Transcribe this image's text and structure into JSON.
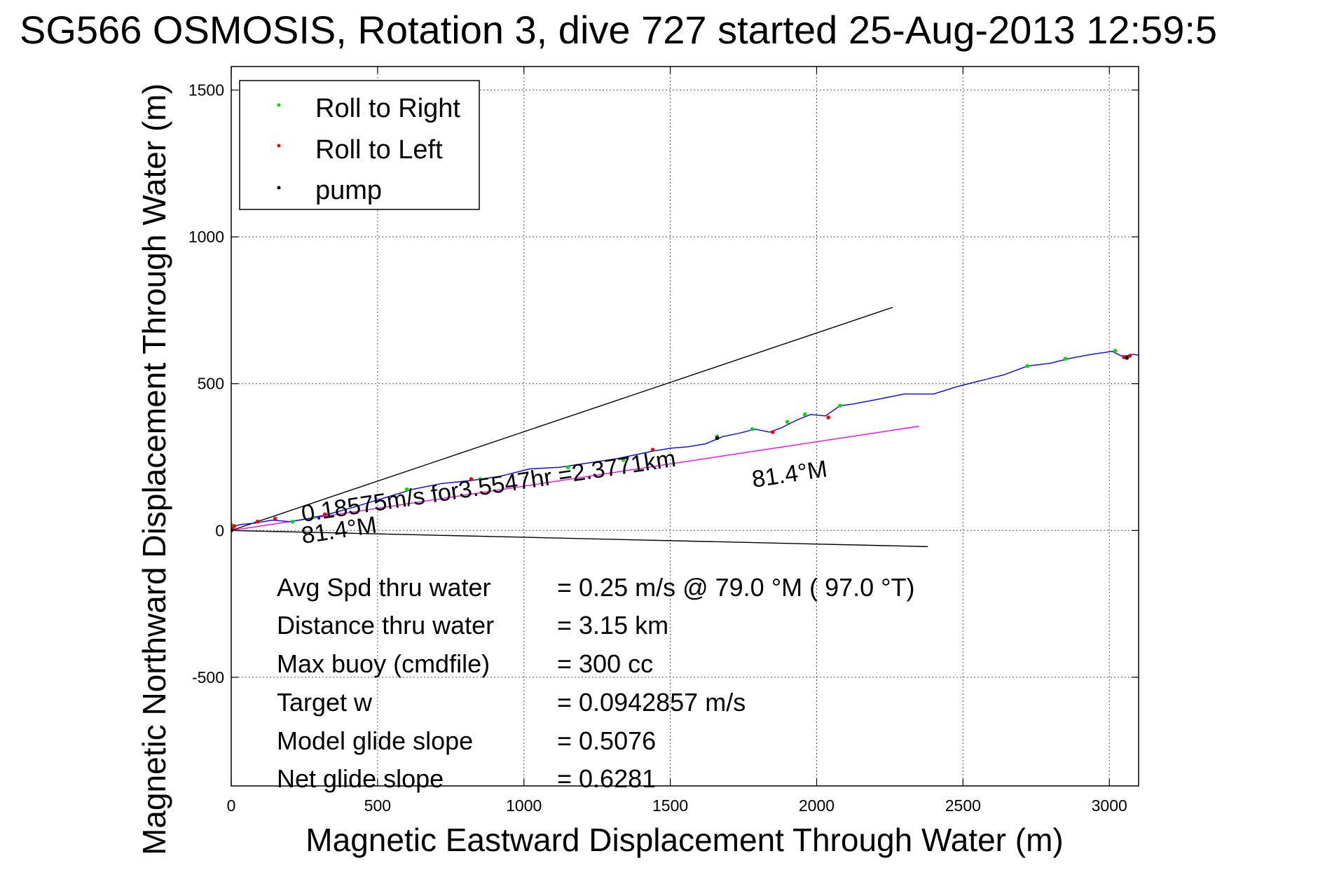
{
  "chart_data": {
    "type": "line",
    "title": "SG566 OSMOSIS, Rotation 3, dive 727 started 25-Aug-2013 12:59:5",
    "xlabel": "Magnetic Eastward Displacement Through Water (m)",
    "ylabel": "Magnetic Northward Displacement Through Water (m)",
    "xlim": [
      0,
      3100
    ],
    "ylim": [
      -870,
      1580
    ],
    "xticks": [
      0,
      500,
      1000,
      1500,
      2000,
      2500,
      3000
    ],
    "yticks": [
      -500,
      0,
      500,
      1000,
      1500
    ],
    "grid": true,
    "legend": {
      "placement": "top-left",
      "entries": [
        {
          "label": "Roll to Right",
          "color": "#00e000"
        },
        {
          "label": "Roll to Left",
          "color": "#ff0000"
        },
        {
          "label": "pump",
          "color": "#000000"
        }
      ]
    },
    "track": {
      "color": "#0000ff",
      "x": [
        0,
        30,
        80,
        140,
        200,
        260,
        330,
        420,
        520,
        620,
        720,
        820,
        920,
        1020,
        1120,
        1220,
        1320,
        1440,
        1500,
        1560,
        1620,
        1680,
        1730,
        1790,
        1840,
        1880,
        1930,
        1980,
        2030,
        2080,
        2120,
        2200,
        2300,
        2400,
        2480,
        2560,
        2640,
        2720,
        2800,
        2860,
        2940,
        3010,
        3040,
        3060,
        3080,
        3100
      ],
      "y": [
        10,
        20,
        25,
        35,
        30,
        40,
        55,
        80,
        110,
        140,
        160,
        170,
        185,
        210,
        215,
        230,
        245,
        270,
        280,
        285,
        295,
        320,
        330,
        345,
        335,
        350,
        375,
        395,
        390,
        425,
        430,
        445,
        465,
        465,
        490,
        510,
        530,
        560,
        570,
        585,
        600,
        610,
        595,
        595,
        600,
        597
      ]
    },
    "roll_right": {
      "x": [
        0,
        210,
        280,
        600,
        850,
        1150,
        1340,
        1660,
        1780,
        1900,
        1960,
        2080,
        2720,
        2850,
        3020
      ],
      "y": [
        20,
        30,
        45,
        140,
        175,
        215,
        240,
        320,
        345,
        370,
        395,
        425,
        560,
        585,
        612
      ]
    },
    "roll_left": {
      "x": [
        5,
        10,
        90,
        150,
        320,
        820,
        1440,
        1850,
        2040,
        3050,
        3070
      ],
      "y": [
        5,
        15,
        30,
        40,
        55,
        175,
        275,
        335,
        385,
        590,
        595
      ]
    },
    "pump": {
      "x": [
        0,
        1660,
        3060
      ],
      "y": [
        0,
        315,
        588
      ]
    },
    "reference_lines": [
      {
        "x": [
          0,
          2260
        ],
        "y": [
          0,
          760
        ],
        "color": "#000000"
      },
      {
        "x": [
          0,
          2380
        ],
        "y": [
          0,
          -55
        ],
        "color": "#000000"
      },
      {
        "x": [
          0,
          2350
        ],
        "y": [
          0,
          355
        ],
        "color": "#ff00ff"
      }
    ],
    "annotations": {
      "speed_label": "0.18575m/s for3.5547hr =2.3771km",
      "heading_start": "81.4°M",
      "heading_end": "81.4°M"
    },
    "stats": [
      {
        "label": "Avg Spd thru water",
        "value": "=  0.25 m/s @  79.0 °M ( 97.0 °T)"
      },
      {
        "label": "Distance thru water",
        "value": "=  3.15 km"
      },
      {
        "label": "Max buoy (cmdfile)",
        "value": "= 300 cc"
      },
      {
        "label": "Target w",
        "value": "= 0.0942857 m/s"
      },
      {
        "label": "Model glide slope",
        "value": "= 0.5076"
      },
      {
        "label": "Net glide slope",
        "value": "= 0.6281"
      }
    ]
  }
}
